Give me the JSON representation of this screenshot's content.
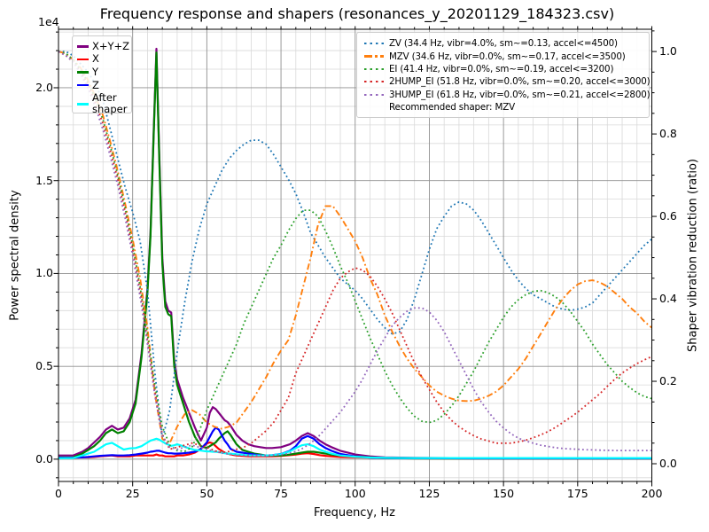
{
  "figure": {
    "title": "Frequency response and shapers (resonances_y_20201129_184323.csv)",
    "offset_label": "1e4"
  },
  "chart_data": {
    "type": "line",
    "title": "Frequency response and shapers (resonances_y_20201129_184323.csv)",
    "xlabel": "Frequency, Hz",
    "ylabel_left": "Power spectral density",
    "ylabel_right": "Shaper vibration reduction (ratio)",
    "grid": "major+minor",
    "legend_left_position": "upper left",
    "legend_right_position": "upper right",
    "x_axis": {
      "min": 0,
      "max": 200,
      "ticks": [
        0,
        25,
        50,
        75,
        100,
        125,
        150,
        175,
        200
      ],
      "tick_labels": [
        "0",
        "25",
        "50",
        "75",
        "100",
        "125",
        "150",
        "175",
        "200"
      ],
      "minor_step": 5
    },
    "y_left": {
      "min": -0.12,
      "max": 2.315,
      "scale_note": "1e4",
      "ticks": [
        0.0,
        0.5,
        1.0,
        1.5,
        2.0
      ],
      "tick_labels": [
        "0.0",
        "0.5",
        "1.0",
        "1.5",
        "2.0"
      ],
      "minor_step": 0.1
    },
    "y_right": {
      "min": -0.043,
      "max": 1.054,
      "ticks": [
        0.0,
        0.2,
        0.4,
        0.6,
        0.8,
        1.0
      ],
      "tick_labels": [
        "0.0",
        "0.2",
        "0.4",
        "0.6",
        "0.8",
        "1.0"
      ],
      "minor_step": 0.05
    },
    "psd": {
      "axis": "left",
      "units": "1e4",
      "x": [
        0,
        5,
        8,
        10,
        12,
        14,
        16,
        18,
        20,
        22,
        24,
        26,
        28,
        30,
        31,
        32,
        33,
        34,
        35,
        36,
        37,
        38,
        39,
        40,
        42,
        44,
        46,
        48,
        50,
        51,
        52,
        53,
        54,
        56,
        57,
        58,
        60,
        62,
        64,
        66,
        68,
        70,
        72,
        75,
        78,
        80,
        82,
        84,
        86,
        88,
        90,
        92,
        95,
        100,
        105,
        110,
        120,
        140,
        160,
        180,
        200
      ],
      "series": [
        {
          "name": "X+Y+Z",
          "color": "#800080",
          "style": "solid",
          "values": [
            0.02,
            0.02,
            0.04,
            0.06,
            0.09,
            0.12,
            0.16,
            0.18,
            0.16,
            0.17,
            0.22,
            0.32,
            0.57,
            0.92,
            1.22,
            1.72,
            2.21,
            1.63,
            1.08,
            0.85,
            0.8,
            0.79,
            0.53,
            0.43,
            0.33,
            0.25,
            0.17,
            0.1,
            0.17,
            0.25,
            0.28,
            0.27,
            0.25,
            0.21,
            0.2,
            0.18,
            0.13,
            0.1,
            0.08,
            0.07,
            0.065,
            0.06,
            0.06,
            0.065,
            0.08,
            0.1,
            0.125,
            0.14,
            0.125,
            0.1,
            0.08,
            0.065,
            0.045,
            0.025,
            0.015,
            0.01,
            0.007,
            0.005,
            0.005,
            0.005,
            0.005
          ]
        },
        {
          "name": "X",
          "color": "#ff0000",
          "style": "solid",
          "values": [
            0.008,
            0.008,
            0.01,
            0.01,
            0.012,
            0.015,
            0.018,
            0.02,
            0.015,
            0.015,
            0.015,
            0.02,
            0.02,
            0.02,
            0.02,
            0.02,
            0.025,
            0.02,
            0.02,
            0.015,
            0.015,
            0.015,
            0.015,
            0.02,
            0.02,
            0.025,
            0.035,
            0.055,
            0.085,
            0.09,
            0.085,
            0.07,
            0.055,
            0.035,
            0.03,
            0.025,
            0.02,
            0.018,
            0.015,
            0.015,
            0.015,
            0.015,
            0.015,
            0.018,
            0.022,
            0.025,
            0.03,
            0.032,
            0.028,
            0.022,
            0.018,
            0.015,
            0.012,
            0.01,
            0.008,
            0.005,
            0.004,
            0.003,
            0.003,
            0.003,
            0.003
          ]
        },
        {
          "name": "Y",
          "color": "#008000",
          "style": "solid",
          "values": [
            0.01,
            0.01,
            0.03,
            0.05,
            0.07,
            0.1,
            0.14,
            0.16,
            0.14,
            0.15,
            0.2,
            0.3,
            0.55,
            0.9,
            1.2,
            1.7,
            2.19,
            1.6,
            1.05,
            0.82,
            0.78,
            0.77,
            0.5,
            0.4,
            0.3,
            0.2,
            0.12,
            0.07,
            0.06,
            0.07,
            0.08,
            0.09,
            0.11,
            0.14,
            0.15,
            0.13,
            0.08,
            0.05,
            0.04,
            0.03,
            0.025,
            0.02,
            0.02,
            0.02,
            0.025,
            0.03,
            0.035,
            0.04,
            0.04,
            0.035,
            0.03,
            0.025,
            0.02,
            0.015,
            0.01,
            0.006,
            0.004,
            0.003,
            0.003,
            0.003,
            0.003
          ]
        },
        {
          "name": "Z",
          "color": "#0000ff",
          "style": "solid",
          "values": [
            0.008,
            0.008,
            0.01,
            0.012,
            0.015,
            0.018,
            0.02,
            0.022,
            0.02,
            0.02,
            0.022,
            0.025,
            0.03,
            0.035,
            0.04,
            0.042,
            0.045,
            0.045,
            0.04,
            0.035,
            0.032,
            0.032,
            0.03,
            0.03,
            0.032,
            0.035,
            0.04,
            0.055,
            0.09,
            0.12,
            0.15,
            0.17,
            0.16,
            0.1,
            0.08,
            0.055,
            0.04,
            0.035,
            0.03,
            0.025,
            0.022,
            0.02,
            0.022,
            0.028,
            0.045,
            0.07,
            0.11,
            0.125,
            0.11,
            0.08,
            0.06,
            0.045,
            0.028,
            0.015,
            0.008,
            0.006,
            0.005,
            0.004,
            0.004,
            0.004,
            0.004
          ]
        },
        {
          "name": "After shaper",
          "color": "#00ffff",
          "style": "solid",
          "values": [
            0.005,
            0.006,
            0.02,
            0.03,
            0.04,
            0.06,
            0.08,
            0.088,
            0.07,
            0.052,
            0.058,
            0.06,
            0.07,
            0.09,
            0.1,
            0.105,
            0.11,
            0.105,
            0.095,
            0.085,
            0.078,
            0.072,
            0.075,
            0.08,
            0.07,
            0.058,
            0.05,
            0.046,
            0.042,
            0.042,
            0.04,
            0.04,
            0.038,
            0.032,
            0.03,
            0.03,
            0.026,
            0.023,
            0.021,
            0.02,
            0.02,
            0.02,
            0.022,
            0.027,
            0.042,
            0.06,
            0.075,
            0.08,
            0.07,
            0.052,
            0.04,
            0.03,
            0.02,
            0.013,
            0.009,
            0.007,
            0.006,
            0.006,
            0.006,
            0.006,
            0.006
          ]
        }
      ]
    },
    "shapers": {
      "axis": "right",
      "x_start": 0,
      "x_step": 2.5,
      "note": "Recommended shaper: MZV",
      "series": [
        {
          "name": "ZV",
          "label": "ZV (34.4 Hz, vibr=4.0%, sm~=0.13, accel<=4500)",
          "color": "#1f77b4",
          "style": "dotted",
          "values": [
            1.0,
            1.0,
            0.99,
            0.97,
            0.95,
            0.92,
            0.88,
            0.81,
            0.74,
            0.67,
            0.61,
            0.54,
            0.42,
            0.22,
            0.06,
            0.13,
            0.27,
            0.39,
            0.49,
            0.57,
            0.63,
            0.67,
            0.71,
            0.74,
            0.76,
            0.775,
            0.785,
            0.785,
            0.775,
            0.75,
            0.72,
            0.69,
            0.655,
            0.61,
            0.56,
            0.53,
            0.5,
            0.475,
            0.45,
            0.435,
            0.42,
            0.4,
            0.375,
            0.35,
            0.33,
            0.315,
            0.32,
            0.35,
            0.4,
            0.46,
            0.52,
            0.57,
            0.6,
            0.625,
            0.635,
            0.63,
            0.615,
            0.59,
            0.56,
            0.53,
            0.5,
            0.47,
            0.445,
            0.425,
            0.41,
            0.4,
            0.39,
            0.38,
            0.375,
            0.372,
            0.375,
            0.38,
            0.39,
            0.41,
            0.43,
            0.45,
            0.47,
            0.49,
            0.51,
            0.53,
            0.545
          ]
        },
        {
          "name": "MZV",
          "label": "MZV (34.6 Hz, vibr=0.0%, sm~=0.17, accel<=3500)",
          "color": "#ff7f0e",
          "style": "dashdot",
          "values": [
            1.0,
            0.995,
            0.98,
            0.96,
            0.93,
            0.89,
            0.845,
            0.78,
            0.71,
            0.63,
            0.545,
            0.45,
            0.33,
            0.17,
            0.06,
            0.05,
            0.09,
            0.12,
            0.13,
            0.12,
            0.1,
            0.09,
            0.085,
            0.09,
            0.1,
            0.125,
            0.15,
            0.18,
            0.21,
            0.245,
            0.275,
            0.3,
            0.36,
            0.43,
            0.5,
            0.58,
            0.625,
            0.625,
            0.6,
            0.57,
            0.54,
            0.5,
            0.45,
            0.41,
            0.36,
            0.32,
            0.285,
            0.255,
            0.23,
            0.21,
            0.19,
            0.175,
            0.165,
            0.158,
            0.153,
            0.152,
            0.153,
            0.158,
            0.165,
            0.175,
            0.19,
            0.21,
            0.23,
            0.255,
            0.285,
            0.315,
            0.345,
            0.375,
            0.4,
            0.42,
            0.435,
            0.443,
            0.445,
            0.44,
            0.43,
            0.415,
            0.4,
            0.38,
            0.365,
            0.345,
            0.33
          ]
        },
        {
          "name": "EI",
          "label": "EI (41.4 Hz, vibr=0.0%, sm~=0.19, accel<=3200)",
          "color": "#2ca02c",
          "style": "dotted",
          "values": [
            1.0,
            0.995,
            0.98,
            0.955,
            0.925,
            0.885,
            0.835,
            0.77,
            0.7,
            0.62,
            0.53,
            0.43,
            0.315,
            0.19,
            0.09,
            0.045,
            0.032,
            0.03,
            0.04,
            0.08,
            0.13,
            0.17,
            0.21,
            0.25,
            0.29,
            0.34,
            0.38,
            0.42,
            0.46,
            0.5,
            0.53,
            0.565,
            0.595,
            0.615,
            0.615,
            0.6,
            0.565,
            0.525,
            0.48,
            0.44,
            0.395,
            0.35,
            0.305,
            0.265,
            0.225,
            0.19,
            0.16,
            0.135,
            0.115,
            0.103,
            0.1,
            0.105,
            0.12,
            0.14,
            0.165,
            0.195,
            0.225,
            0.26,
            0.295,
            0.325,
            0.355,
            0.38,
            0.398,
            0.41,
            0.418,
            0.42,
            0.415,
            0.405,
            0.39,
            0.37,
            0.345,
            0.32,
            0.29,
            0.265,
            0.24,
            0.22,
            0.2,
            0.185,
            0.172,
            0.163,
            0.158
          ]
        },
        {
          "name": "2HUMP_EI",
          "label": "2HUMP_EI (51.8 Hz, vibr=0.0%, sm~=0.20, accel<=3000)",
          "color": "#d62728",
          "style": "dotted",
          "values": [
            1.0,
            0.99,
            0.975,
            0.95,
            0.92,
            0.875,
            0.825,
            0.76,
            0.69,
            0.61,
            0.52,
            0.42,
            0.3,
            0.175,
            0.07,
            0.035,
            0.04,
            0.045,
            0.05,
            0.045,
            0.04,
            0.032,
            0.027,
            0.03,
            0.035,
            0.04,
            0.05,
            0.065,
            0.08,
            0.1,
            0.13,
            0.16,
            0.22,
            0.26,
            0.3,
            0.34,
            0.38,
            0.42,
            0.45,
            0.465,
            0.475,
            0.47,
            0.455,
            0.43,
            0.4,
            0.365,
            0.325,
            0.285,
            0.245,
            0.21,
            0.18,
            0.15,
            0.125,
            0.105,
            0.09,
            0.078,
            0.068,
            0.06,
            0.055,
            0.05,
            0.05,
            0.05,
            0.053,
            0.057,
            0.063,
            0.07,
            0.078,
            0.088,
            0.1,
            0.112,
            0.125,
            0.14,
            0.155,
            0.17,
            0.188,
            0.205,
            0.22,
            0.232,
            0.243,
            0.252,
            0.26
          ]
        },
        {
          "name": "3HUMP_EI",
          "label": "3HUMP_EI (61.8 Hz, vibr=0.0%, sm~=0.21, accel<=2800)",
          "color": "#9467bd",
          "style": "dotted",
          "values": [
            1.0,
            0.99,
            0.975,
            0.945,
            0.91,
            0.865,
            0.81,
            0.745,
            0.675,
            0.595,
            0.505,
            0.405,
            0.29,
            0.165,
            0.065,
            0.04,
            0.035,
            0.04,
            0.045,
            0.04,
            0.035,
            0.03,
            0.026,
            0.023,
            0.021,
            0.02,
            0.02,
            0.02,
            0.02,
            0.021,
            0.022,
            0.025,
            0.03,
            0.038,
            0.05,
            0.065,
            0.085,
            0.105,
            0.125,
            0.15,
            0.175,
            0.205,
            0.24,
            0.275,
            0.305,
            0.335,
            0.355,
            0.37,
            0.378,
            0.378,
            0.368,
            0.348,
            0.32,
            0.285,
            0.25,
            0.215,
            0.18,
            0.15,
            0.125,
            0.103,
            0.087,
            0.073,
            0.062,
            0.055,
            0.05,
            0.045,
            0.042,
            0.039,
            0.037,
            0.036,
            0.035,
            0.034,
            0.0335,
            0.033,
            0.0325,
            0.032,
            0.032,
            0.032,
            0.032,
            0.032,
            0.032
          ]
        }
      ]
    }
  }
}
